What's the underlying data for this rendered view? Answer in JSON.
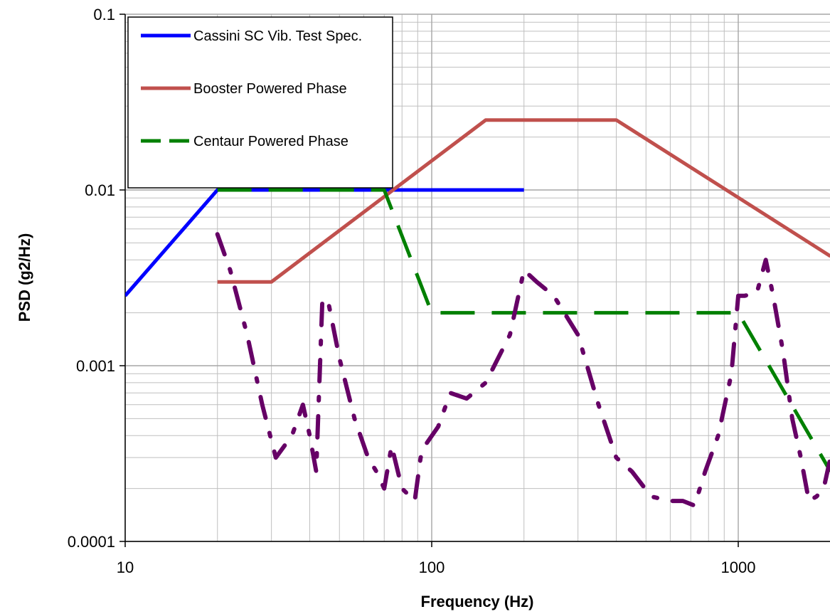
{
  "chart_data": {
    "type": "line",
    "title": "",
    "xlabel": "Frequency (Hz)",
    "ylabel": "PSD (g2/Hz)",
    "x_scale": "log",
    "y_scale": "log",
    "xlim": [
      10,
      2000
    ],
    "ylim": [
      0.0001,
      0.1
    ],
    "x_ticks": [
      "10",
      "100",
      "1000"
    ],
    "y_ticks": [
      "0.1",
      "0.01",
      "0.001",
      "0.0001"
    ],
    "grid": true,
    "legend_position": "top-left",
    "series": [
      {
        "name": "Cassini SC Vib. Test Spec.",
        "color": "#0000ff",
        "style": "solid",
        "x": [
          10,
          20,
          200
        ],
        "y": [
          0.0025,
          0.01,
          0.01
        ]
      },
      {
        "name": "Booster Powered Phase",
        "color": "#c0504d",
        "style": "solid",
        "x": [
          20,
          30,
          150,
          400,
          2000
        ],
        "y": [
          0.003,
          0.003,
          0.025,
          0.025,
          0.0042
        ]
      },
      {
        "name": "Centaur Powered Phase",
        "color": "#008000",
        "style": "dash",
        "x": [
          20,
          70,
          100,
          1000,
          2000
        ],
        "y": [
          0.01,
          0.01,
          0.002,
          0.002,
          0.00025
        ]
      },
      {
        "name": "",
        "color": "#660066",
        "style": "dashdot",
        "x": [
          20,
          22,
          25,
          28,
          31,
          35,
          38,
          40,
          42,
          44,
          46,
          50,
          56,
          62,
          66,
          70,
          74,
          80,
          88,
          92,
          96,
          105,
          115,
          130,
          150,
          180,
          200,
          220,
          250,
          300,
          350,
          400,
          450,
          520,
          600,
          660,
          720,
          780,
          860,
          950,
          1000,
          1050,
          1150,
          1230,
          1300,
          1400,
          1500,
          1600,
          1700,
          1800,
          1900,
          2000
        ],
        "y": [
          0.0056,
          0.0035,
          0.0015,
          0.0006,
          0.0003,
          0.0004,
          0.0006,
          0.0004,
          0.00025,
          0.0024,
          0.0023,
          0.0011,
          0.0005,
          0.0003,
          0.00025,
          0.0002,
          0.00035,
          0.0002,
          0.00017,
          0.0003,
          0.00036,
          0.00045,
          0.0007,
          0.00065,
          0.0008,
          0.0015,
          0.0035,
          0.003,
          0.0025,
          0.0015,
          0.0006,
          0.0003,
          0.00025,
          0.00018,
          0.00017,
          0.00017,
          0.00016,
          0.00025,
          0.0004,
          0.0009,
          0.0025,
          0.0025,
          0.0026,
          0.004,
          0.0025,
          0.0012,
          0.0005,
          0.0003,
          0.00017,
          0.00018,
          0.0002,
          0.0003
        ]
      }
    ]
  }
}
